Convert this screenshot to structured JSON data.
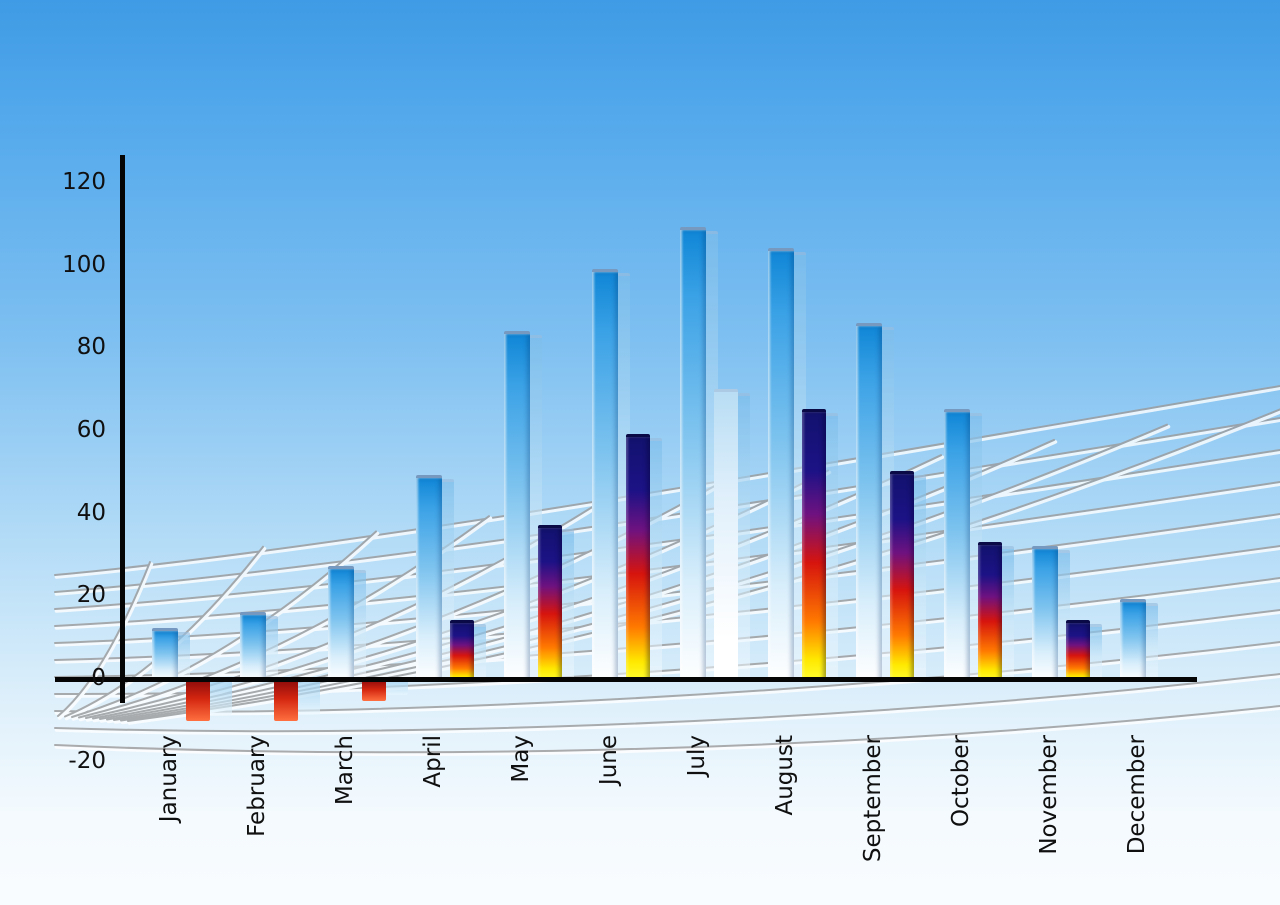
{
  "chart_data": {
    "type": "bar",
    "title": "",
    "xlabel": "",
    "ylabel": "",
    "categories": [
      "January",
      "February",
      "March",
      "April",
      "May",
      "June",
      "July",
      "August",
      "September",
      "October",
      "November",
      "December"
    ],
    "series": [
      {
        "name": "primary-blue-bars",
        "values": [
          12,
          16,
          27,
          49,
          84,
          99,
          109,
          104,
          86,
          65,
          32,
          19
        ]
      },
      {
        "name": "secondary-gradient-bars",
        "values": [
          -10,
          -10,
          -5,
          14,
          37,
          59,
          70,
          65,
          50,
          33,
          14,
          null
        ]
      }
    ],
    "secondary_bar_styles": [
      "negative",
      "negative",
      "negative",
      "heat",
      "heat",
      "heat",
      "pale",
      "heat",
      "heat",
      "heat",
      "heat",
      null
    ],
    "ylim": [
      -20,
      120
    ],
    "yticks": [
      120,
      100,
      80,
      60,
      40,
      20,
      0,
      -20
    ],
    "grid": "curved-perspective-floor-grid",
    "legend": "none",
    "colors": {
      "sky_top": "#3f9be5",
      "sky_bottom": "#f9fcff",
      "axis": "#050505",
      "bar_blue_top": "#0f86d6",
      "bar_blue_bottom": "#ffffff",
      "heat_top_navy": "#12126e",
      "heat_mid_red": "#d6140e",
      "heat_bottom_yellow": "#ffff30",
      "negative_red_top": "#8c0a0a",
      "negative_red_bottom": "#ff7040",
      "grid_line": "#9a9a9a"
    }
  }
}
